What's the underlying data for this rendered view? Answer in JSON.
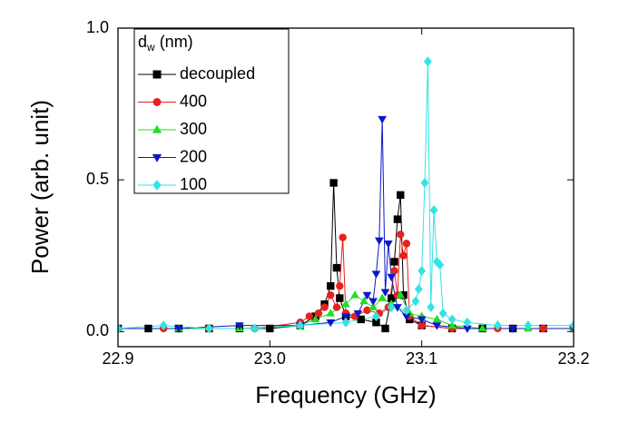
{
  "chart_data": {
    "type": "line",
    "x_label": "Frequency (GHz)",
    "y_label": "Power (arb. unit)",
    "legend_title": "d",
    "legend_title_sub": "w",
    "legend_title_unit": "(nm)",
    "xlim": [
      22.9,
      23.2
    ],
    "xticks": [
      22.9,
      {
        "value": 23.0,
        "label": "23.0"
      },
      23.1,
      23.2
    ],
    "ylim": [
      -0.05,
      1.0
    ],
    "yticks": [
      {
        "value": 0,
        "label": "0.0"
      },
      0.5,
      {
        "value": 1.0,
        "label": "1.0"
      }
    ],
    "legend": "upper left",
    "series": [
      {
        "name": "decoupled",
        "color": "#000000",
        "marker": "square",
        "x": [
          22.9,
          22.92,
          22.94,
          22.96,
          22.98,
          23.0,
          23.02,
          23.03,
          23.036,
          23.04,
          23.042,
          23.044,
          23.046,
          23.05,
          23.06,
          23.07,
          23.076,
          23.08,
          23.082,
          23.084,
          23.086,
          23.088,
          23.092,
          23.1,
          23.12,
          23.14,
          23.16,
          23.18,
          23.2
        ],
        "values": [
          0.01,
          0.01,
          0.01,
          0.01,
          0.01,
          0.01,
          0.02,
          0.05,
          0.09,
          0.15,
          0.49,
          0.21,
          0.11,
          0.05,
          0.04,
          0.03,
          0.01,
          0.11,
          0.23,
          0.37,
          0.45,
          0.12,
          0.04,
          0.02,
          0.01,
          0.01,
          0.01,
          0.01,
          0.01
        ]
      },
      {
        "name": "400",
        "color": "#e8211e",
        "marker": "circle",
        "x": [
          22.9,
          22.93,
          22.96,
          22.99,
          23.02,
          23.026,
          23.032,
          23.036,
          23.04,
          23.044,
          23.046,
          23.048,
          23.05,
          23.056,
          23.064,
          23.072,
          23.078,
          23.082,
          23.084,
          23.086,
          23.088,
          23.09,
          23.092,
          23.1,
          23.12,
          23.15,
          23.18,
          23.2
        ],
        "values": [
          0.01,
          0.01,
          0.01,
          0.01,
          0.03,
          0.05,
          0.06,
          0.08,
          0.12,
          0.08,
          0.15,
          0.31,
          0.06,
          0.05,
          0.07,
          0.06,
          0.08,
          0.2,
          0.12,
          0.32,
          0.25,
          0.29,
          0.05,
          0.02,
          0.01,
          0.01,
          0.01,
          0.01
        ]
      },
      {
        "name": "300",
        "color": "#22dd22",
        "marker": "triangle-up",
        "x": [
          22.9,
          22.94,
          22.98,
          23.02,
          23.03,
          23.04,
          23.05,
          23.056,
          23.062,
          23.068,
          23.074,
          23.08,
          23.086,
          23.092,
          23.1,
          23.11,
          23.12,
          23.14,
          23.17,
          23.2
        ],
        "values": [
          0.01,
          0.01,
          0.01,
          0.02,
          0.04,
          0.06,
          0.09,
          0.12,
          0.1,
          0.08,
          0.11,
          0.09,
          0.12,
          0.06,
          0.05,
          0.04,
          0.02,
          0.01,
          0.01,
          0.01
        ]
      },
      {
        "name": "200",
        "color": "#0b18c8",
        "marker": "triangle-down",
        "x": [
          22.9,
          22.94,
          22.98,
          23.02,
          23.04,
          23.05,
          23.058,
          23.064,
          23.068,
          23.07,
          23.072,
          23.074,
          23.076,
          23.078,
          23.08,
          23.084,
          23.09,
          23.1,
          23.11,
          23.13,
          23.16,
          23.2
        ],
        "values": [
          0.01,
          0.01,
          0.02,
          0.02,
          0.03,
          0.05,
          0.06,
          0.12,
          0.1,
          0.19,
          0.3,
          0.7,
          0.13,
          0.29,
          0.18,
          0.08,
          0.05,
          0.04,
          0.02,
          0.01,
          0.01,
          0.01
        ]
      },
      {
        "name": "100",
        "color": "#33e3e3",
        "marker": "diamond",
        "x": [
          22.9,
          22.93,
          22.96,
          22.99,
          23.02,
          23.05,
          23.07,
          23.08,
          23.09,
          23.096,
          23.098,
          23.1,
          23.102,
          23.104,
          23.106,
          23.108,
          23.11,
          23.112,
          23.114,
          23.12,
          23.13,
          23.15,
          23.17,
          23.2
        ],
        "values": [
          0.01,
          0.02,
          0.01,
          0.01,
          0.02,
          0.03,
          0.05,
          0.08,
          0.07,
          0.1,
          0.14,
          0.2,
          0.49,
          0.89,
          0.08,
          0.4,
          0.23,
          0.22,
          0.06,
          0.04,
          0.03,
          0.02,
          0.02,
          0.02
        ]
      }
    ]
  }
}
